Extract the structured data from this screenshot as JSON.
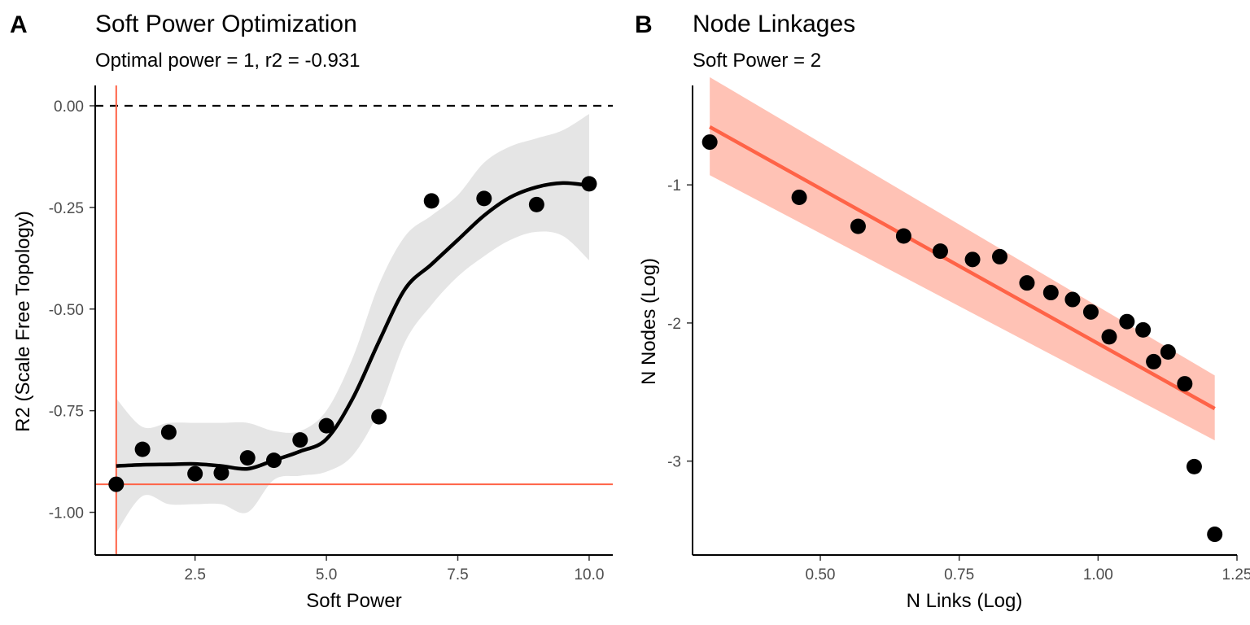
{
  "chart_data": [
    {
      "panel": "A",
      "type": "scatter",
      "title": "Soft Power Optimization",
      "subtitle": "Optimal power = 1, r2 = -0.931",
      "xlabel": "Soft Power",
      "ylabel": "R2 (Scale Free Topology)",
      "xlim": [
        0.6,
        10.45
      ],
      "ylim": [
        -1.105,
        0.05
      ],
      "xticks": [
        2.5,
        5.0,
        7.5,
        10.0
      ],
      "xtick_labels": [
        "2.5",
        "5.0",
        "7.5",
        "10.0"
      ],
      "yticks": [
        0.0,
        -0.25,
        -0.5,
        -0.75,
        -1.0
      ],
      "ytick_labels": [
        "0.00",
        "-0.25",
        "-0.50",
        "-0.75",
        "-1.00"
      ],
      "grid": false,
      "points": {
        "x": [
          1,
          1.5,
          2,
          2.5,
          3,
          3.5,
          4,
          4.5,
          5,
          6,
          7,
          8,
          9,
          10
        ],
        "y": [
          -0.931,
          -0.845,
          -0.803,
          -0.905,
          -0.903,
          -0.866,
          -0.872,
          -0.822,
          -0.787,
          -0.765,
          -0.234,
          -0.228,
          -0.243,
          -0.192
        ]
      },
      "smooth": {
        "x": [
          1,
          1.5,
          2,
          2.5,
          3,
          3.5,
          4,
          4.5,
          5,
          5.5,
          6,
          6.5,
          7,
          7.5,
          8,
          8.5,
          9,
          9.5,
          10
        ],
        "y": [
          -0.886,
          -0.883,
          -0.882,
          -0.881,
          -0.886,
          -0.893,
          -0.872,
          -0.85,
          -0.82,
          -0.72,
          -0.58,
          -0.45,
          -0.39,
          -0.33,
          -0.27,
          -0.225,
          -0.2,
          -0.19,
          -0.196
        ],
        "ci_lower": [
          -1.05,
          -0.96,
          -0.98,
          -0.98,
          -0.98,
          -1.0,
          -0.92,
          -0.91,
          -0.9,
          -0.86,
          -0.75,
          -0.58,
          -0.49,
          -0.42,
          -0.37,
          -0.33,
          -0.31,
          -0.32,
          -0.38
        ],
        "ci_upper": [
          -0.72,
          -0.79,
          -0.78,
          -0.78,
          -0.78,
          -0.78,
          -0.8,
          -0.8,
          -0.75,
          -0.62,
          -0.44,
          -0.32,
          -0.27,
          -0.22,
          -0.14,
          -0.1,
          -0.08,
          -0.06,
          -0.02
        ]
      },
      "reference_lines": {
        "hline_dashed": 0.0,
        "hline_optimal": -0.931,
        "vline_optimal": 1
      },
      "colors": {
        "points": "#000000",
        "smooth": "#000000",
        "ribbon": "#e5e5e5",
        "reference": "#ff6347"
      }
    },
    {
      "panel": "B",
      "type": "scatter",
      "title": "Node Linkages",
      "subtitle": "Soft Power = 2",
      "xlabel": "N Links (Log)",
      "ylabel": "N Nodes (Log)",
      "xlim": [
        0.27,
        1.25
      ],
      "ylim": [
        -3.68,
        -0.28
      ],
      "xticks": [
        0.5,
        0.75,
        1.0,
        1.25
      ],
      "xtick_labels": [
        "0.50",
        "0.75",
        "1.00",
        "1.25"
      ],
      "yticks": [
        -1,
        -2,
        -3
      ],
      "ytick_labels": [
        "-1",
        "-2",
        "-3"
      ],
      "grid": false,
      "points": {
        "x": [
          0.301,
          0.462,
          0.568,
          0.65,
          0.716,
          0.774,
          0.823,
          0.872,
          0.915,
          0.954,
          0.987,
          1.02,
          1.052,
          1.081,
          1.1,
          1.126,
          1.156,
          1.173,
          1.21
        ],
        "y": [
          -0.69,
          -1.09,
          -1.3,
          -1.37,
          -1.48,
          -1.54,
          -1.52,
          -1.71,
          -1.78,
          -1.83,
          -1.92,
          -2.1,
          -1.99,
          -2.05,
          -2.28,
          -2.21,
          -2.44,
          -3.04,
          -3.53
        ]
      },
      "fit": {
        "x": [
          0.301,
          1.21
        ],
        "y": [
          -0.58,
          -2.62
        ],
        "ci_lower": [
          -0.93,
          -2.85
        ],
        "ci_upper": [
          -0.22,
          -2.38
        ]
      },
      "colors": {
        "points": "#000000",
        "fit": "#ff6347",
        "ribbon": "#ffc2b5"
      }
    }
  ]
}
